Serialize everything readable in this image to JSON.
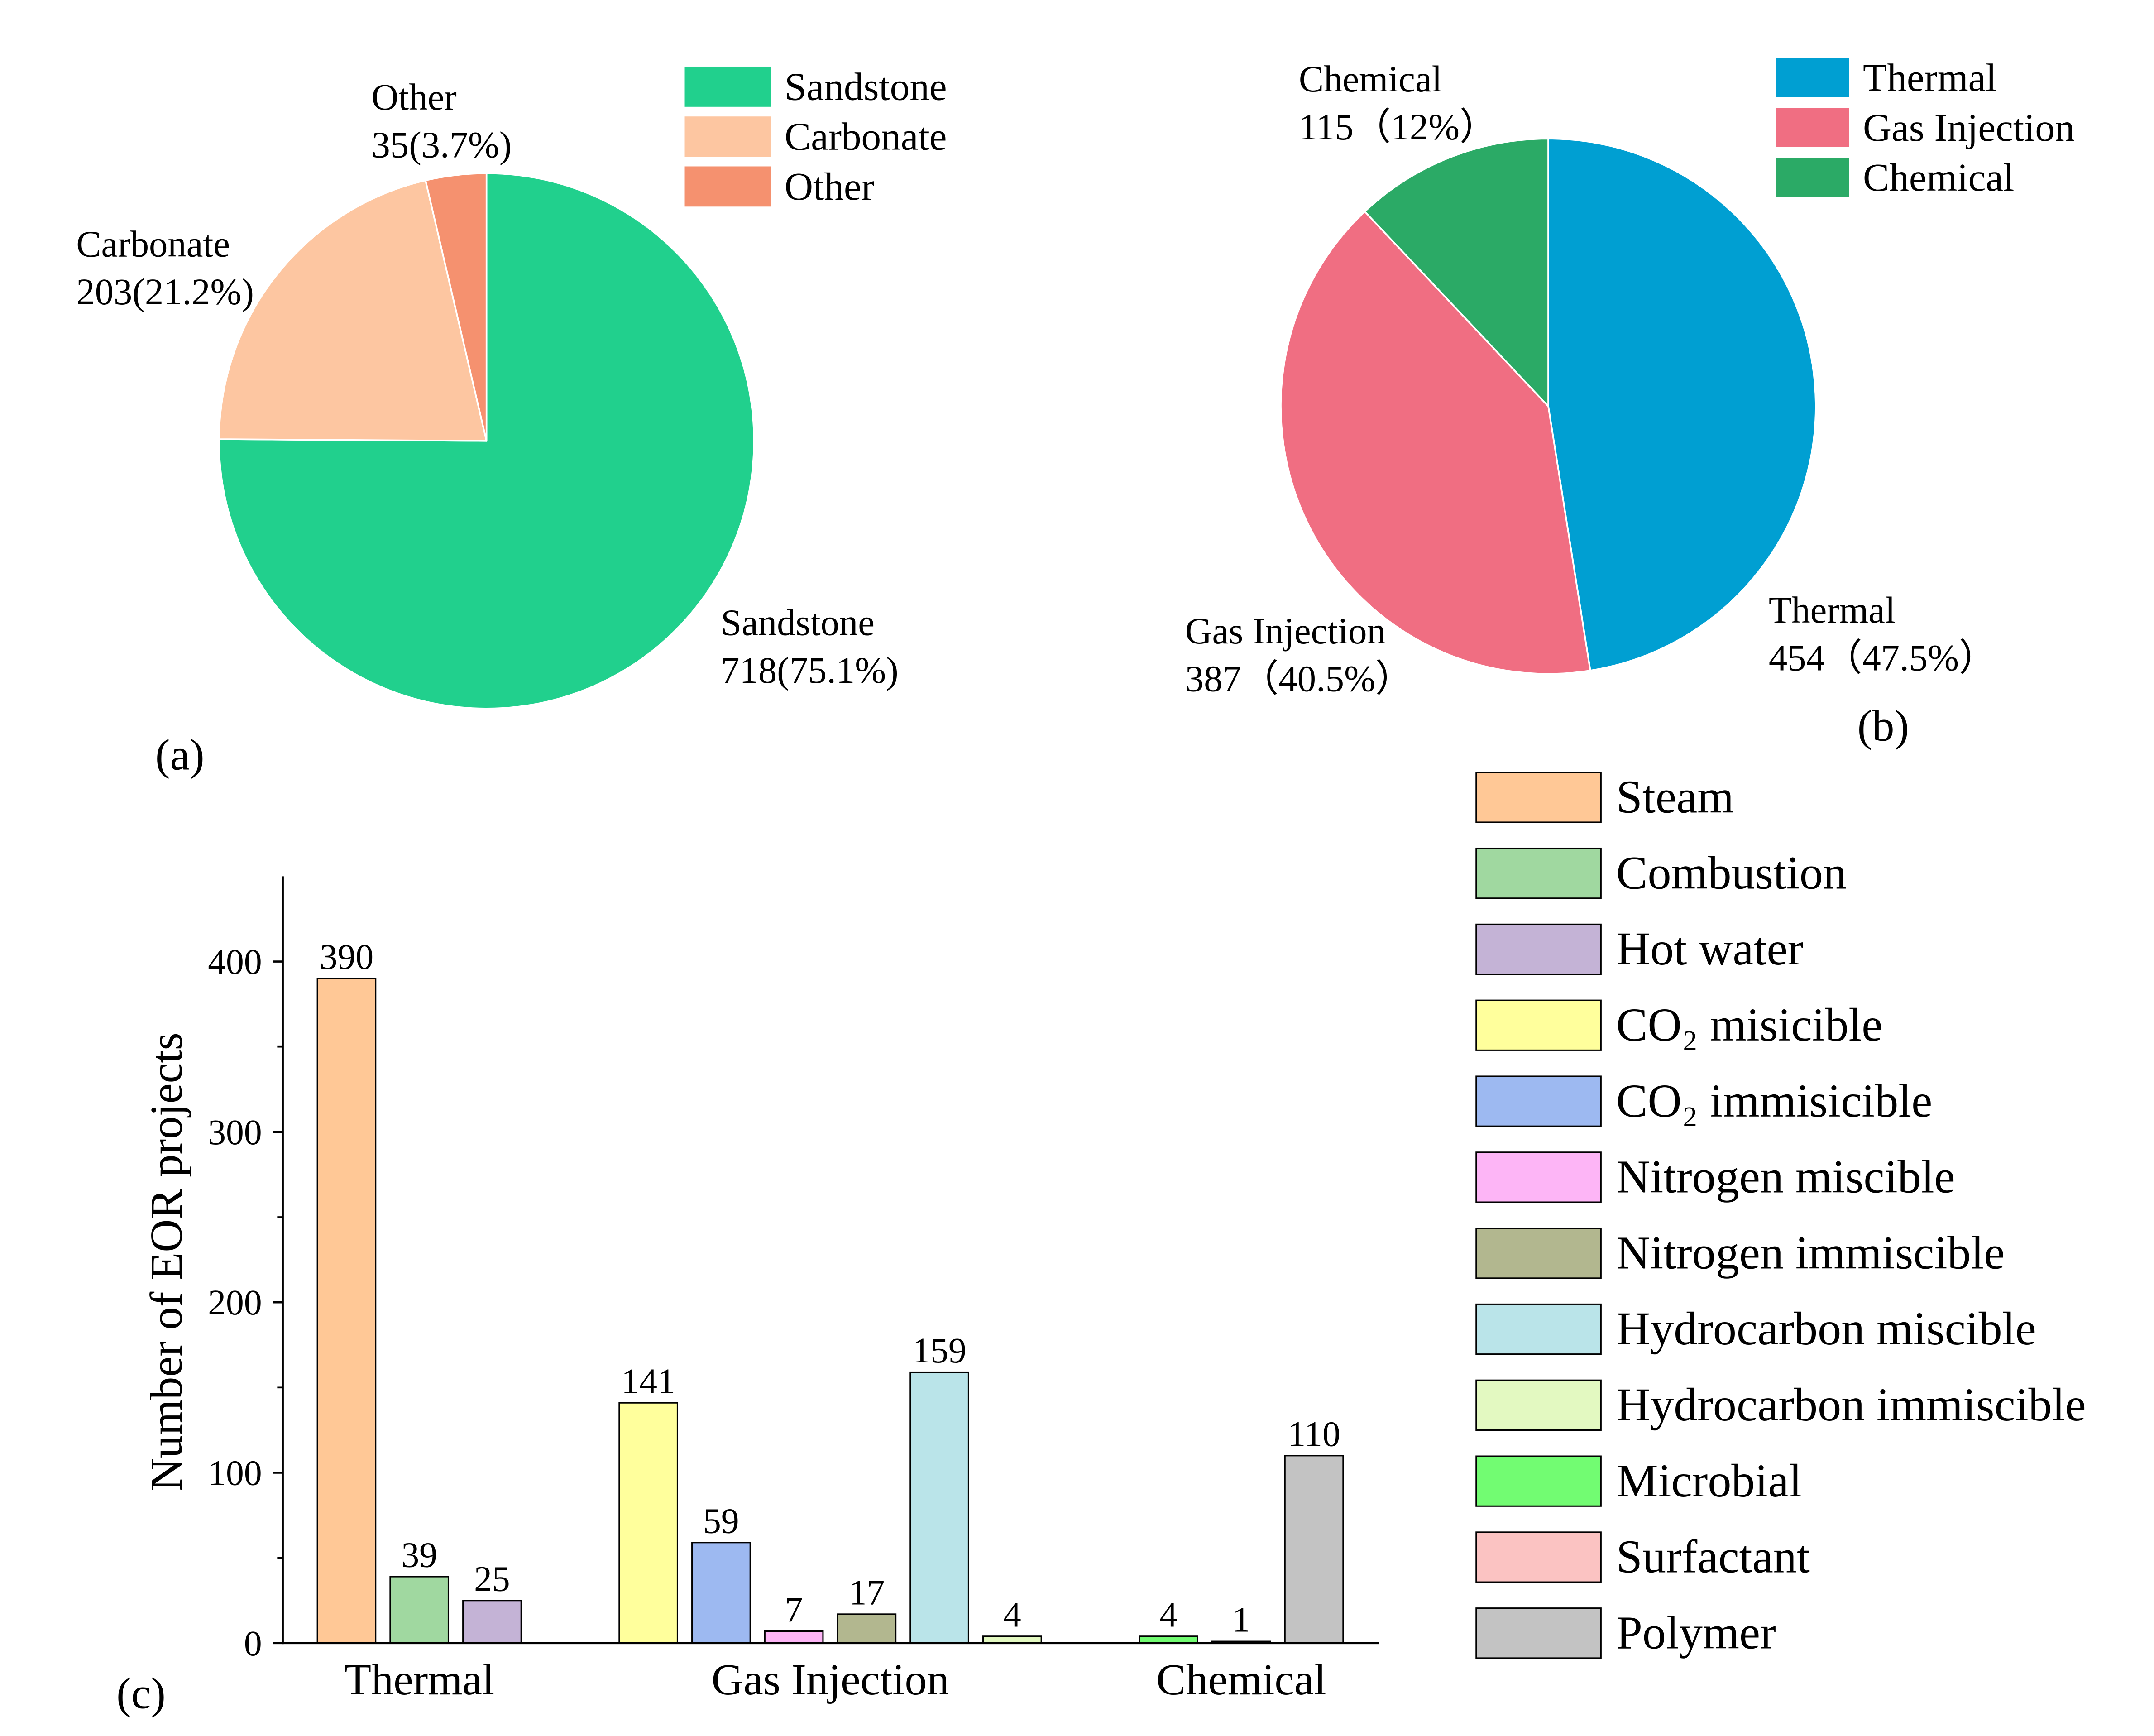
{
  "chart_data": [
    {
      "type": "pie",
      "panel_label": "(a)",
      "slices": [
        {
          "name": "Sandstone",
          "value": 718,
          "value_label": "718(75.1%)",
          "color": "#21D08D"
        },
        {
          "name": "Carbonate",
          "value": 203,
          "value_label": "203(21.2%)",
          "color": "#FDC6A1"
        },
        {
          "name": "Other",
          "value": 35,
          "value_label": "35(3.7%)",
          "color": "#F5916F"
        }
      ],
      "legend_position": "top-right"
    },
    {
      "type": "pie",
      "panel_label": "(b)",
      "slices": [
        {
          "name": "Thermal",
          "value": 454,
          "value_label": "454（47.5%）",
          "color": "#009FD2"
        },
        {
          "name": "Gas Injection",
          "value": 387,
          "value_label": "387（40.5%）",
          "color": "#F06E82"
        },
        {
          "name": "Chemical",
          "value": 115,
          "value_label": "115（12%）",
          "color": "#2BAA66"
        }
      ],
      "legend_position": "top-right"
    },
    {
      "type": "bar",
      "panel_label": "(c)",
      "xlabel": "",
      "ylabel": "Number of EOR projects",
      "ylim": [
        0,
        450
      ],
      "yticks": [
        0,
        100,
        200,
        300,
        400
      ],
      "categories": [
        "Thermal",
        "Gas Injection",
        "Chemical"
      ],
      "series": [
        {
          "name": "Steam",
          "category": "Thermal",
          "value": 390,
          "color": "#FFC896"
        },
        {
          "name": "Combustion",
          "category": "Thermal",
          "value": 39,
          "color": "#A0D8A0"
        },
        {
          "name": "Hot water",
          "category": "Thermal",
          "value": 25,
          "color": "#C4B3D6"
        },
        {
          "name": "CO₂ misicible",
          "category": "Gas Injection",
          "value": 141,
          "color": "#FFFF9C"
        },
        {
          "name": "CO₂ immisicible",
          "category": "Gas Injection",
          "value": 59,
          "color": "#9DB9F1"
        },
        {
          "name": "Nitrogen miscible",
          "category": "Gas Injection",
          "value": 7,
          "color": "#FDB5F6"
        },
        {
          "name": "Nitrogen immiscible",
          "category": "Gas Injection",
          "value": 17,
          "color": "#B2B78F"
        },
        {
          "name": "Hydrocarbon miscible",
          "category": "Gas Injection",
          "value": 159,
          "color": "#BAE4E9"
        },
        {
          "name": "Hydrocarbon immiscible",
          "category": "Gas Injection",
          "value": 4,
          "color": "#E3F9C1"
        },
        {
          "name": "Microbial",
          "category": "Chemical",
          "value": 4,
          "color": "#72FC72"
        },
        {
          "name": "Surfactant",
          "category": "Chemical",
          "value": 1,
          "color": "#FBC3C2"
        },
        {
          "name": "Polymer",
          "category": "Chemical",
          "value": 110,
          "color": "#C3C3C3"
        }
      ],
      "grid": false,
      "legend_position": "right"
    }
  ]
}
